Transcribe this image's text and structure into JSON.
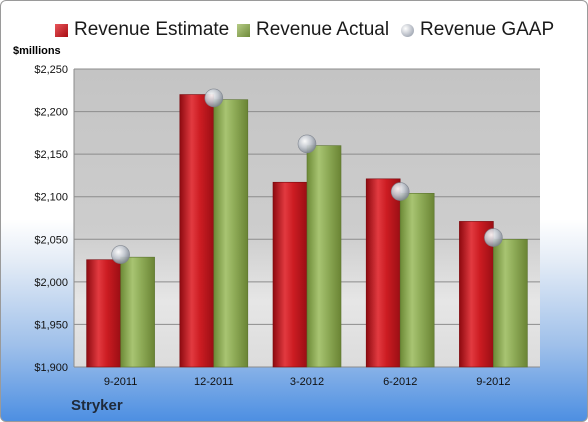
{
  "chart_data": {
    "type": "bar",
    "categories": [
      "9-2011",
      "12-2011",
      "3-2012",
      "6-2012",
      "9-2012"
    ],
    "series": [
      {
        "name": "Revenue Estimate",
        "kind": "bar",
        "color": "#c4141c",
        "values": [
          2026,
          2220,
          2117,
          2121,
          2071
        ]
      },
      {
        "name": "Revenue Actual",
        "kind": "bar",
        "color": "#88a650",
        "values": [
          2029,
          2214,
          2160,
          2104,
          2050
        ]
      },
      {
        "name": "Revenue GAAP",
        "kind": "marker",
        "color": "#b8bec8",
        "values": [
          2032,
          2216,
          2162,
          2106,
          2052
        ]
      }
    ],
    "ylabel": "$millions",
    "ylim": [
      1900,
      2250
    ],
    "yticks": [
      "$1,900",
      "$1,950",
      "$2,000",
      "$2,050",
      "$2,100",
      "$2,150",
      "$2,200",
      "$2,250"
    ],
    "yticks_values": [
      1900,
      1950,
      2000,
      2050,
      2100,
      2150,
      2200,
      2250
    ],
    "grid": true,
    "legend": "top"
  },
  "company": "Stryker"
}
